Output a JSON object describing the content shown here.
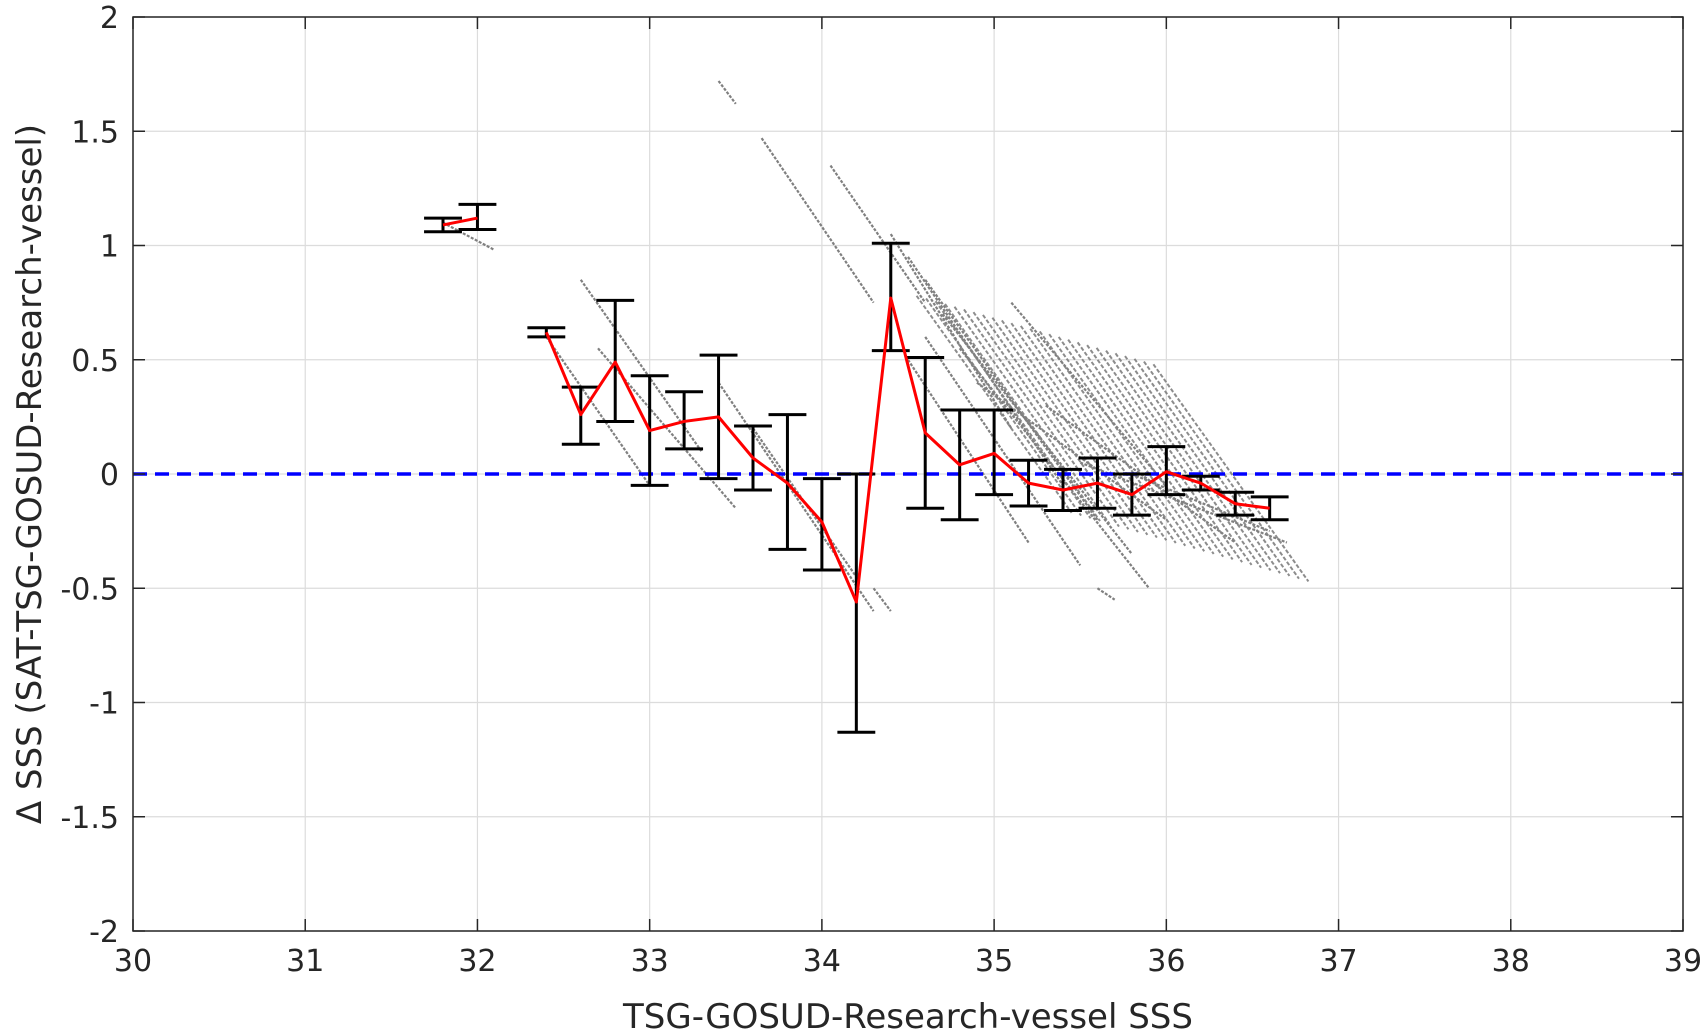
{
  "chart_data": {
    "type": "scatter",
    "xlabel": "TSG-GOSUD-Research-vessel SSS",
    "ylabel": "Δ SSS (SAT-TSG-GOSUD-Research-vessel)",
    "xlim": [
      30,
      39
    ],
    "ylim": [
      -2,
      2
    ],
    "x_ticks": [
      30,
      31,
      32,
      33,
      34,
      35,
      36,
      37,
      38,
      39
    ],
    "y_ticks": [
      -2,
      -1.5,
      -1,
      -0.5,
      0,
      0.5,
      1,
      1.5,
      2
    ],
    "grid": true,
    "reference_line": {
      "y": 0,
      "color": "#0000ff",
      "style": "dashed"
    },
    "colors": {
      "scatter": "#808080",
      "mean_line": "#ff0000",
      "error_bars": "#000000"
    },
    "scatter_streaks": [
      {
        "x0": 31.8,
        "y0": 1.1,
        "x1": 32.1,
        "y1": 0.98
      },
      {
        "x0": 32.4,
        "y0": 0.6,
        "x1": 33.0,
        "y1": -0.05
      },
      {
        "x0": 32.6,
        "y0": 0.85,
        "x1": 33.3,
        "y1": 0.1
      },
      {
        "x0": 32.7,
        "y0": 0.55,
        "x1": 33.5,
        "y1": -0.15
      },
      {
        "x0": 33.4,
        "y0": 0.4,
        "x1": 34.3,
        "y1": -0.6
      },
      {
        "x0": 33.6,
        "y0": 0.2,
        "x1": 34.2,
        "y1": -0.45
      },
      {
        "x0": 33.4,
        "y0": 1.72,
        "x1": 33.5,
        "y1": 1.62
      },
      {
        "x0": 33.65,
        "y0": 1.47,
        "x1": 34.3,
        "y1": 0.75
      },
      {
        "x0": 34.05,
        "y0": 1.35,
        "x1": 34.6,
        "y1": 0.75
      },
      {
        "x0": 34.4,
        "y0": 1.05,
        "x1": 35.1,
        "y1": 0.2
      },
      {
        "x0": 34.5,
        "y0": 0.95,
        "x1": 35.4,
        "y1": -0.05
      },
      {
        "x0": 34.6,
        "y0": 0.85,
        "x1": 35.6,
        "y1": -0.2
      },
      {
        "x0": 34.7,
        "y0": 0.7,
        "x1": 35.8,
        "y1": -0.35
      },
      {
        "x0": 34.8,
        "y0": 0.55,
        "x1": 35.9,
        "y1": -0.5
      },
      {
        "x0": 34.6,
        "y0": 0.6,
        "x1": 35.5,
        "y1": -0.4
      },
      {
        "x0": 34.5,
        "y0": 0.5,
        "x1": 35.2,
        "y1": -0.3
      },
      {
        "x0": 34.9,
        "y0": 0.4,
        "x1": 36.0,
        "y1": -0.2
      },
      {
        "x0": 35.1,
        "y0": 0.75,
        "x1": 36.0,
        "y1": -0.05
      },
      {
        "x0": 35.3,
        "y0": 0.3,
        "x1": 36.4,
        "y1": -0.3
      },
      {
        "x0": 35.5,
        "y0": 0.05,
        "x1": 36.7,
        "y1": -0.3
      },
      {
        "x0": 35.8,
        "y0": 0.0,
        "x1": 36.6,
        "y1": -0.25
      },
      {
        "x0": 34.3,
        "y0": -0.5,
        "x1": 34.4,
        "y1": -0.6
      },
      {
        "x0": 35.6,
        "y0": -0.5,
        "x1": 35.7,
        "y1": -0.55
      }
    ],
    "series": [
      {
        "x": [
          31.8,
          32.0
        ],
        "y": [
          1.09,
          1.12
        ],
        "error_low": [
          1.06,
          1.07
        ],
        "error_high": [
          1.12,
          1.18
        ]
      },
      {
        "x": [
          32.4,
          32.6,
          32.8,
          33.0,
          33.2,
          33.4,
          33.6,
          33.8,
          34.0,
          34.2,
          34.4,
          34.6,
          34.8,
          35.0,
          35.2,
          35.4,
          35.6,
          35.8,
          36.0,
          36.2,
          36.4,
          36.6
        ],
        "y": [
          0.62,
          0.26,
          0.49,
          0.19,
          0.23,
          0.25,
          0.07,
          -0.04,
          -0.21,
          -0.56,
          0.77,
          0.18,
          0.04,
          0.09,
          -0.04,
          -0.07,
          -0.04,
          -0.09,
          0.01,
          -0.04,
          -0.13,
          -0.15
        ],
        "error_low": [
          0.6,
          0.13,
          0.23,
          -0.05,
          0.11,
          -0.02,
          -0.07,
          -0.33,
          -0.42,
          -1.13,
          0.54,
          -0.15,
          -0.2,
          -0.09,
          -0.14,
          -0.16,
          -0.15,
          -0.18,
          -0.09,
          -0.07,
          -0.18,
          -0.2
        ],
        "error_high": [
          0.64,
          0.38,
          0.76,
          0.43,
          0.36,
          0.52,
          0.21,
          0.26,
          -0.02,
          0.0,
          1.01,
          0.51,
          0.28,
          0.28,
          0.06,
          0.02,
          0.07,
          0.0,
          0.12,
          -0.01,
          -0.08,
          -0.1
        ]
      }
    ]
  }
}
